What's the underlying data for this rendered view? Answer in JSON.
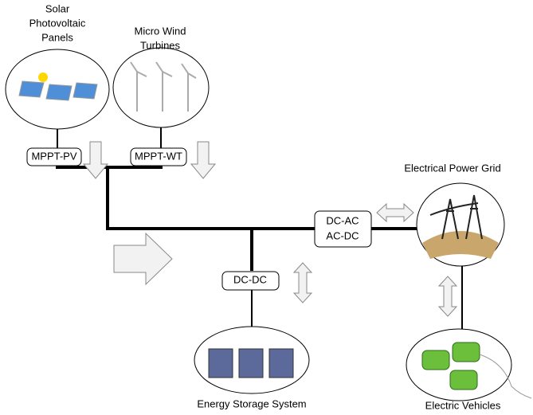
{
  "nodes": [
    {
      "label": [
        "Solar",
        "Photovoltaic",
        "Panels"
      ]
    },
    {
      "label": [
        "Micro Wind",
        "Turbines"
      ]
    },
    {
      "label": [
        "Electrical Power Grid"
      ]
    },
    {
      "label": [
        "Energy Storage System"
      ]
    },
    {
      "label": [
        "Electric Vehicles"
      ]
    }
  ],
  "converters": [
    {
      "label": [
        "MPPT-PV"
      ]
    },
    {
      "label": [
        "MPPT-WT"
      ]
    },
    {
      "label": [
        "DC-AC",
        "AC-DC"
      ]
    },
    {
      "label": [
        "DC-DC"
      ]
    }
  ]
}
